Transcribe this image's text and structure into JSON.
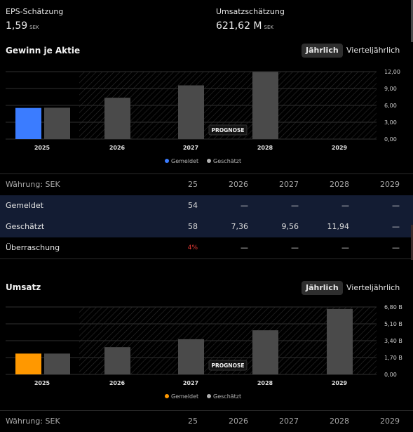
{
  "summary": {
    "eps": {
      "label": "EPS-Schätzung",
      "value": "1,59",
      "unit": "SEK"
    },
    "revenue": {
      "label": "Umsatzschätzung",
      "value": "621,62 M",
      "unit": "SEK"
    }
  },
  "eps_section": {
    "title": "Gewinn je Aktie",
    "toggle_annual": "Jährlich",
    "toggle_quarterly": "Vierteljährlich",
    "prognose": "PROGNOSE",
    "legend_reported": "Gemeldet",
    "legend_estimated": "Geschätzt"
  },
  "revenue_section": {
    "title": "Umsatz",
    "toggle_annual": "Jährlich",
    "toggle_quarterly": "Vierteljährlich",
    "prognose": "PROGNOSE",
    "legend_reported": "Gemeldet",
    "legend_estimated": "Geschätzt"
  },
  "colors": {
    "reported_eps": "#3b7cff",
    "reported_revenue": "#ff9800",
    "estimated": "#4a4a4a",
    "surprise_negative": "#e53935"
  },
  "chart_data": [
    {
      "type": "bar",
      "categories": [
        "2025",
        "2026",
        "2027",
        "2028",
        "2029"
      ],
      "series": [
        {
          "name": "Gemeldet",
          "values": [
            5.54,
            null,
            null,
            null,
            null
          ]
        },
        {
          "name": "Geschätzt",
          "values": [
            5.58,
            7.36,
            9.56,
            11.94,
            null
          ]
        }
      ],
      "yticks": [
        "12,00",
        "9,00",
        "6,00",
        "3,00",
        "0,00"
      ],
      "ylim": [
        0,
        12
      ]
    },
    {
      "type": "bar",
      "categories": [
        "2025",
        "2026",
        "2027",
        "2028",
        "2029"
      ],
      "series": [
        {
          "name": "Gemeldet",
          "values": [
            2.1,
            null,
            null,
            null,
            null
          ]
        },
        {
          "name": "Geschätzt",
          "values": [
            2.1,
            2.75,
            3.55,
            4.45,
            6.6
          ]
        }
      ],
      "yticks": [
        "6,80 B",
        "5,10 B",
        "3,40 B",
        "1,70 B",
        "0,00"
      ],
      "ylim": [
        0,
        6.8
      ]
    }
  ],
  "eps_table": {
    "header_label": "Währung: SEK",
    "years": [
      "25",
      "2026",
      "2027",
      "2028",
      "2029"
    ],
    "rows": [
      {
        "label": "Gemeldet",
        "cells": [
          "54",
          "—",
          "—",
          "—",
          "—"
        ]
      },
      {
        "label": "Geschätzt",
        "cells": [
          "58",
          "7,36",
          "9,56",
          "11,94",
          "—"
        ]
      },
      {
        "label": "Überraschung",
        "cells": [
          "4%",
          "—",
          "—",
          "—",
          "—"
        ]
      }
    ]
  },
  "revenue_table": {
    "header_label": "Währung: SEK",
    "years": [
      "25",
      "2026",
      "2027",
      "2028",
      "2029"
    ]
  }
}
